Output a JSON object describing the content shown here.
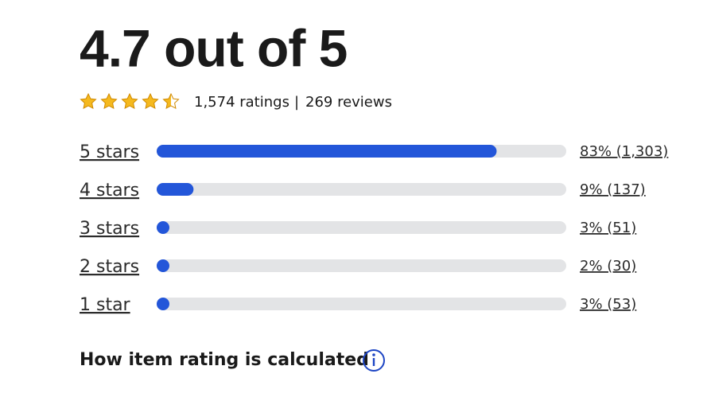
{
  "header": {
    "title": "4.7 out of 5"
  },
  "summary": {
    "ratings": "1,574 ratings",
    "separator": "|",
    "reviews": "269 reviews"
  },
  "xlim": [
    0,
    100
  ],
  "rows": [
    {
      "label": "5 stars",
      "value": 83,
      "value_label": "83% (1,303)"
    },
    {
      "label": "4 stars",
      "value": 9,
      "value_label": "9% (137)"
    },
    {
      "label": "3 stars",
      "value": 3,
      "value_label": "3% (51)"
    },
    {
      "label": "2 stars",
      "value": 2,
      "value_label": "2% (30)"
    },
    {
      "label": "1 star",
      "value": 3,
      "value_label": "3% (53)"
    }
  ],
  "footer": {
    "link": "How item rating is calculated"
  }
}
